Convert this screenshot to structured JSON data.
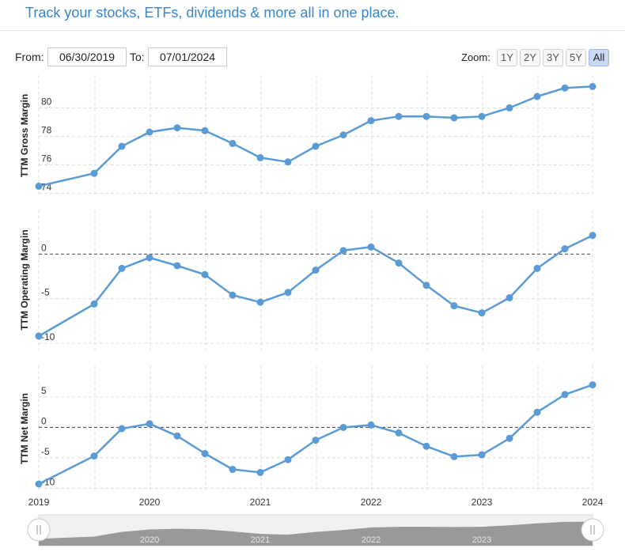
{
  "header": {
    "tagline": "Track your stocks, ETFs, dividends & more all in one place."
  },
  "controls": {
    "from_label": "From:",
    "from_value": "06/30/2019",
    "to_label": "To:",
    "to_value": "07/01/2024",
    "zoom_label": "Zoom:",
    "zoom_buttons": [
      "1Y",
      "2Y",
      "3Y",
      "5Y",
      "All"
    ],
    "zoom_active": "All"
  },
  "colors": {
    "series": "#5b9bd5",
    "grid": "#dcdcdc",
    "zero": "#555555"
  },
  "chart_data": {
    "type": "line",
    "x": [
      2019.5,
      2020.0,
      2020.25,
      2020.5,
      2020.75,
      2021.0,
      2021.25,
      2021.5,
      2021.75,
      2022.0,
      2022.25,
      2022.5,
      2022.75,
      2023.0,
      2023.25,
      2023.5,
      2023.75,
      2024.0,
      2024.25,
      2024.5
    ],
    "xlim": [
      2019.5,
      2024.5
    ],
    "x_ticks": [
      {
        "value": 2019.5,
        "label": "2019"
      },
      {
        "value": 2020.5,
        "label": "2020"
      },
      {
        "value": 2021.5,
        "label": "2021"
      },
      {
        "value": 2022.5,
        "label": "2022"
      },
      {
        "value": 2023.5,
        "label": "2023"
      },
      {
        "value": 2024.5,
        "label": "2024"
      }
    ],
    "navigator_labels": [
      "2020",
      "2021",
      "2022",
      "2023"
    ],
    "panels": [
      {
        "name": "TTM Gross Margin",
        "ylabel": "TTM Gross Margin",
        "ylim": [
          73.8,
          82.3
        ],
        "ticks": [
          74,
          76,
          78,
          80
        ],
        "zero_line": false,
        "values": [
          74.5,
          75.4,
          77.3,
          78.3,
          78.6,
          78.4,
          77.5,
          76.5,
          76.2,
          77.3,
          78.1,
          79.1,
          79.4,
          79.4,
          79.3,
          79.4,
          80.0,
          80.8,
          81.4,
          81.5
        ]
      },
      {
        "name": "TTM Operating Margin",
        "ylabel": "TTM Operating Margin",
        "ylim": [
          -10.8,
          5.0
        ],
        "ticks": [
          -10,
          -5,
          0
        ],
        "zero_line": true,
        "values": [
          -9.2,
          -5.6,
          -1.6,
          -0.4,
          -1.3,
          -2.3,
          -4.6,
          -5.4,
          -4.3,
          -1.8,
          0.4,
          0.8,
          -1.0,
          -3.5,
          -5.8,
          -6.6,
          -4.9,
          -1.6,
          0.6,
          2.1
        ]
      },
      {
        "name": "TTM Net Margin",
        "ylabel": "TTM Net Margin",
        "ylim": [
          -10.6,
          10.2
        ],
        "ticks": [
          -10,
          -5,
          0,
          5
        ],
        "zero_line": true,
        "values": [
          -9.3,
          -4.7,
          -0.2,
          0.6,
          -1.4,
          -4.3,
          -6.9,
          -7.4,
          -5.3,
          -2.1,
          0.0,
          0.4,
          -0.9,
          -3.1,
          -4.8,
          -4.5,
          -1.8,
          2.5,
          5.4,
          7.0
        ]
      }
    ]
  }
}
